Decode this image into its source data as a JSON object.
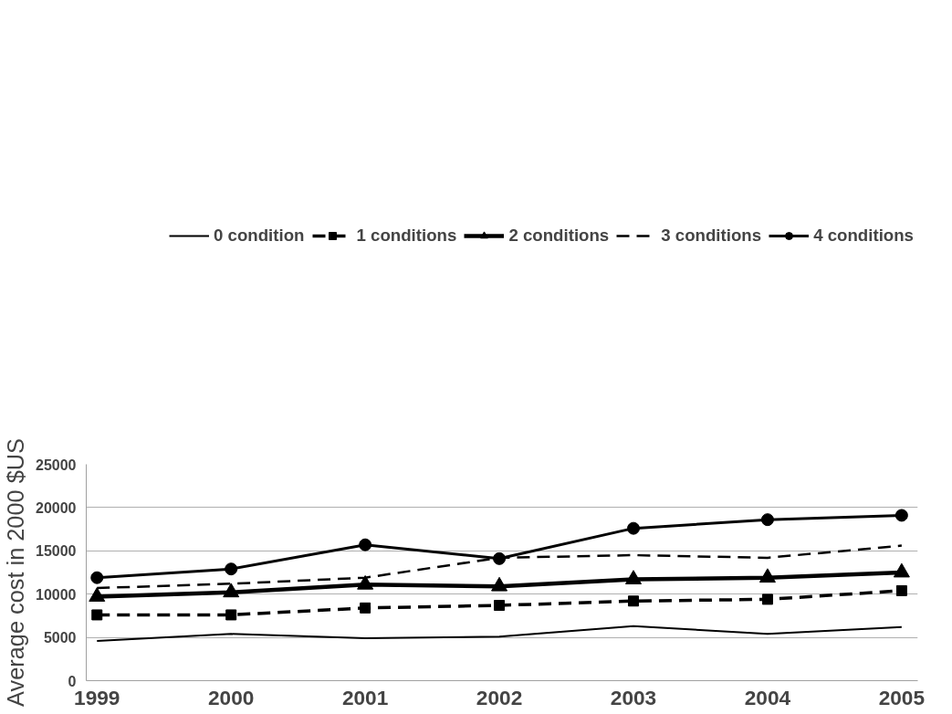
{
  "chart_data": {
    "type": "line",
    "ylabel": "Average cost in 2000 $US",
    "categories": [
      "1999",
      "2000",
      "2001",
      "2002",
      "2003",
      "2004",
      "2005"
    ],
    "ylim": [
      0,
      25000
    ],
    "yticks": [
      0,
      5000,
      10000,
      15000,
      20000,
      25000
    ],
    "grid": "y",
    "legend": "top",
    "series": [
      {
        "name": "0 condition",
        "color": "#000000",
        "line_style": "solid",
        "marker": "none",
        "values": [
          4600,
          5400,
          4900,
          5100,
          6300,
          5400,
          6200
        ]
      },
      {
        "name": "1 conditions",
        "color": "#000000",
        "line_style": "dashed",
        "marker": "square",
        "values": [
          7600,
          7600,
          8400,
          8700,
          9200,
          9400,
          10400
        ]
      },
      {
        "name": "2 conditions",
        "color": "#000000",
        "line_style": "solid",
        "marker": "triangle",
        "values": [
          9700,
          10200,
          11100,
          10900,
          11700,
          11900,
          12500
        ]
      },
      {
        "name": "3 conditions",
        "color": "#000000",
        "line_style": "dashed",
        "marker": "none",
        "values": [
          10700,
          11200,
          11900,
          14200,
          14500,
          14200,
          15600
        ]
      },
      {
        "name": "4 conditions",
        "color": "#000000",
        "line_style": "solid",
        "marker": "circle",
        "values": [
          11900,
          12900,
          15700,
          14100,
          17600,
          18600,
          19100
        ]
      }
    ]
  }
}
